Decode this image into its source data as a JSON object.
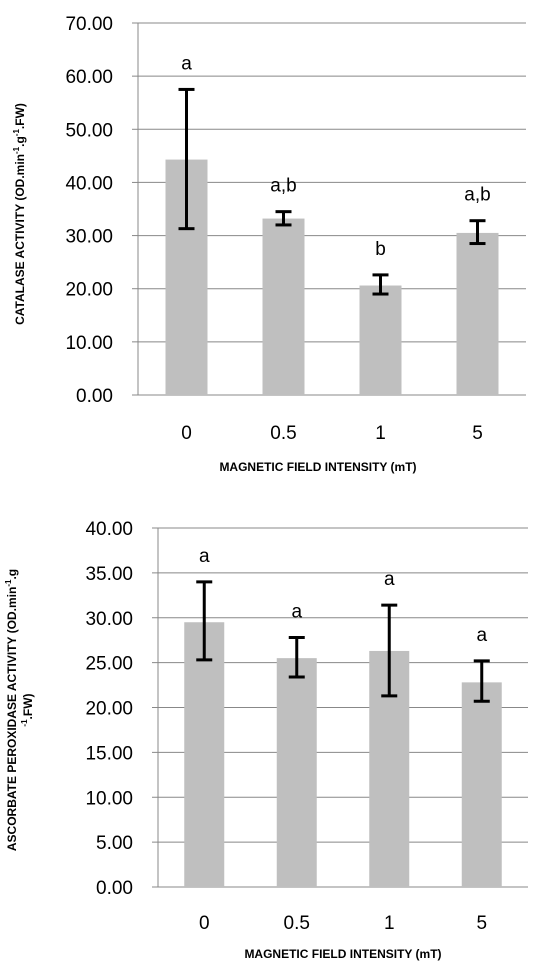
{
  "chart_data": [
    {
      "type": "bar",
      "categories": [
        "0",
        "0.5",
        "1",
        "5"
      ],
      "values": [
        44.3,
        33.2,
        20.6,
        30.5
      ],
      "error_low": [
        31.3,
        32.0,
        19.0,
        28.5
      ],
      "error_high": [
        57.5,
        34.5,
        22.6,
        32.8
      ],
      "significance": [
        "a",
        "a,b",
        "b",
        "a,b"
      ],
      "y_ticks": [
        "0.00",
        "10.00",
        "20.00",
        "30.00",
        "40.00",
        "50.00",
        "60.00",
        "70.00"
      ],
      "ylim": [
        0,
        70
      ],
      "xlabel": "MAGNETIC  FIELD INTENSITY (mT)",
      "ylabel": {
        "pre": "CATALASE  ACTIVITY (OD.min",
        "sup1": "-1",
        "mid": ".g",
        "sup2": "-1",
        "post": ".FW)"
      },
      "grid": true,
      "bar_color": "#bfbfbf"
    },
    {
      "type": "bar",
      "categories": [
        "0",
        "0.5",
        "1",
        "5"
      ],
      "values": [
        29.5,
        25.5,
        26.3,
        22.8
      ],
      "error_low": [
        25.3,
        23.4,
        21.3,
        20.7
      ],
      "error_high": [
        34.0,
        27.8,
        31.4,
        25.2
      ],
      "significance": [
        "a",
        "a",
        "a",
        "a"
      ],
      "y_ticks": [
        "0.00",
        "5.00",
        "10.00",
        "15.00",
        "20.00",
        "25.00",
        "30.00",
        "35.00",
        "40.00"
      ],
      "ylim": [
        0,
        40
      ],
      "xlabel": "MAGNETIC  FIELD INTENSITY (mT)",
      "ylabel": {
        "line1": "ASCORBATE PEROXIDASE ACTIVITY (OD.min",
        "sup1": "-1",
        "line1b": ".g",
        "line2sup": "-1",
        "line2": ".FW)"
      },
      "grid": true,
      "bar_color": "#bfbfbf"
    }
  ]
}
